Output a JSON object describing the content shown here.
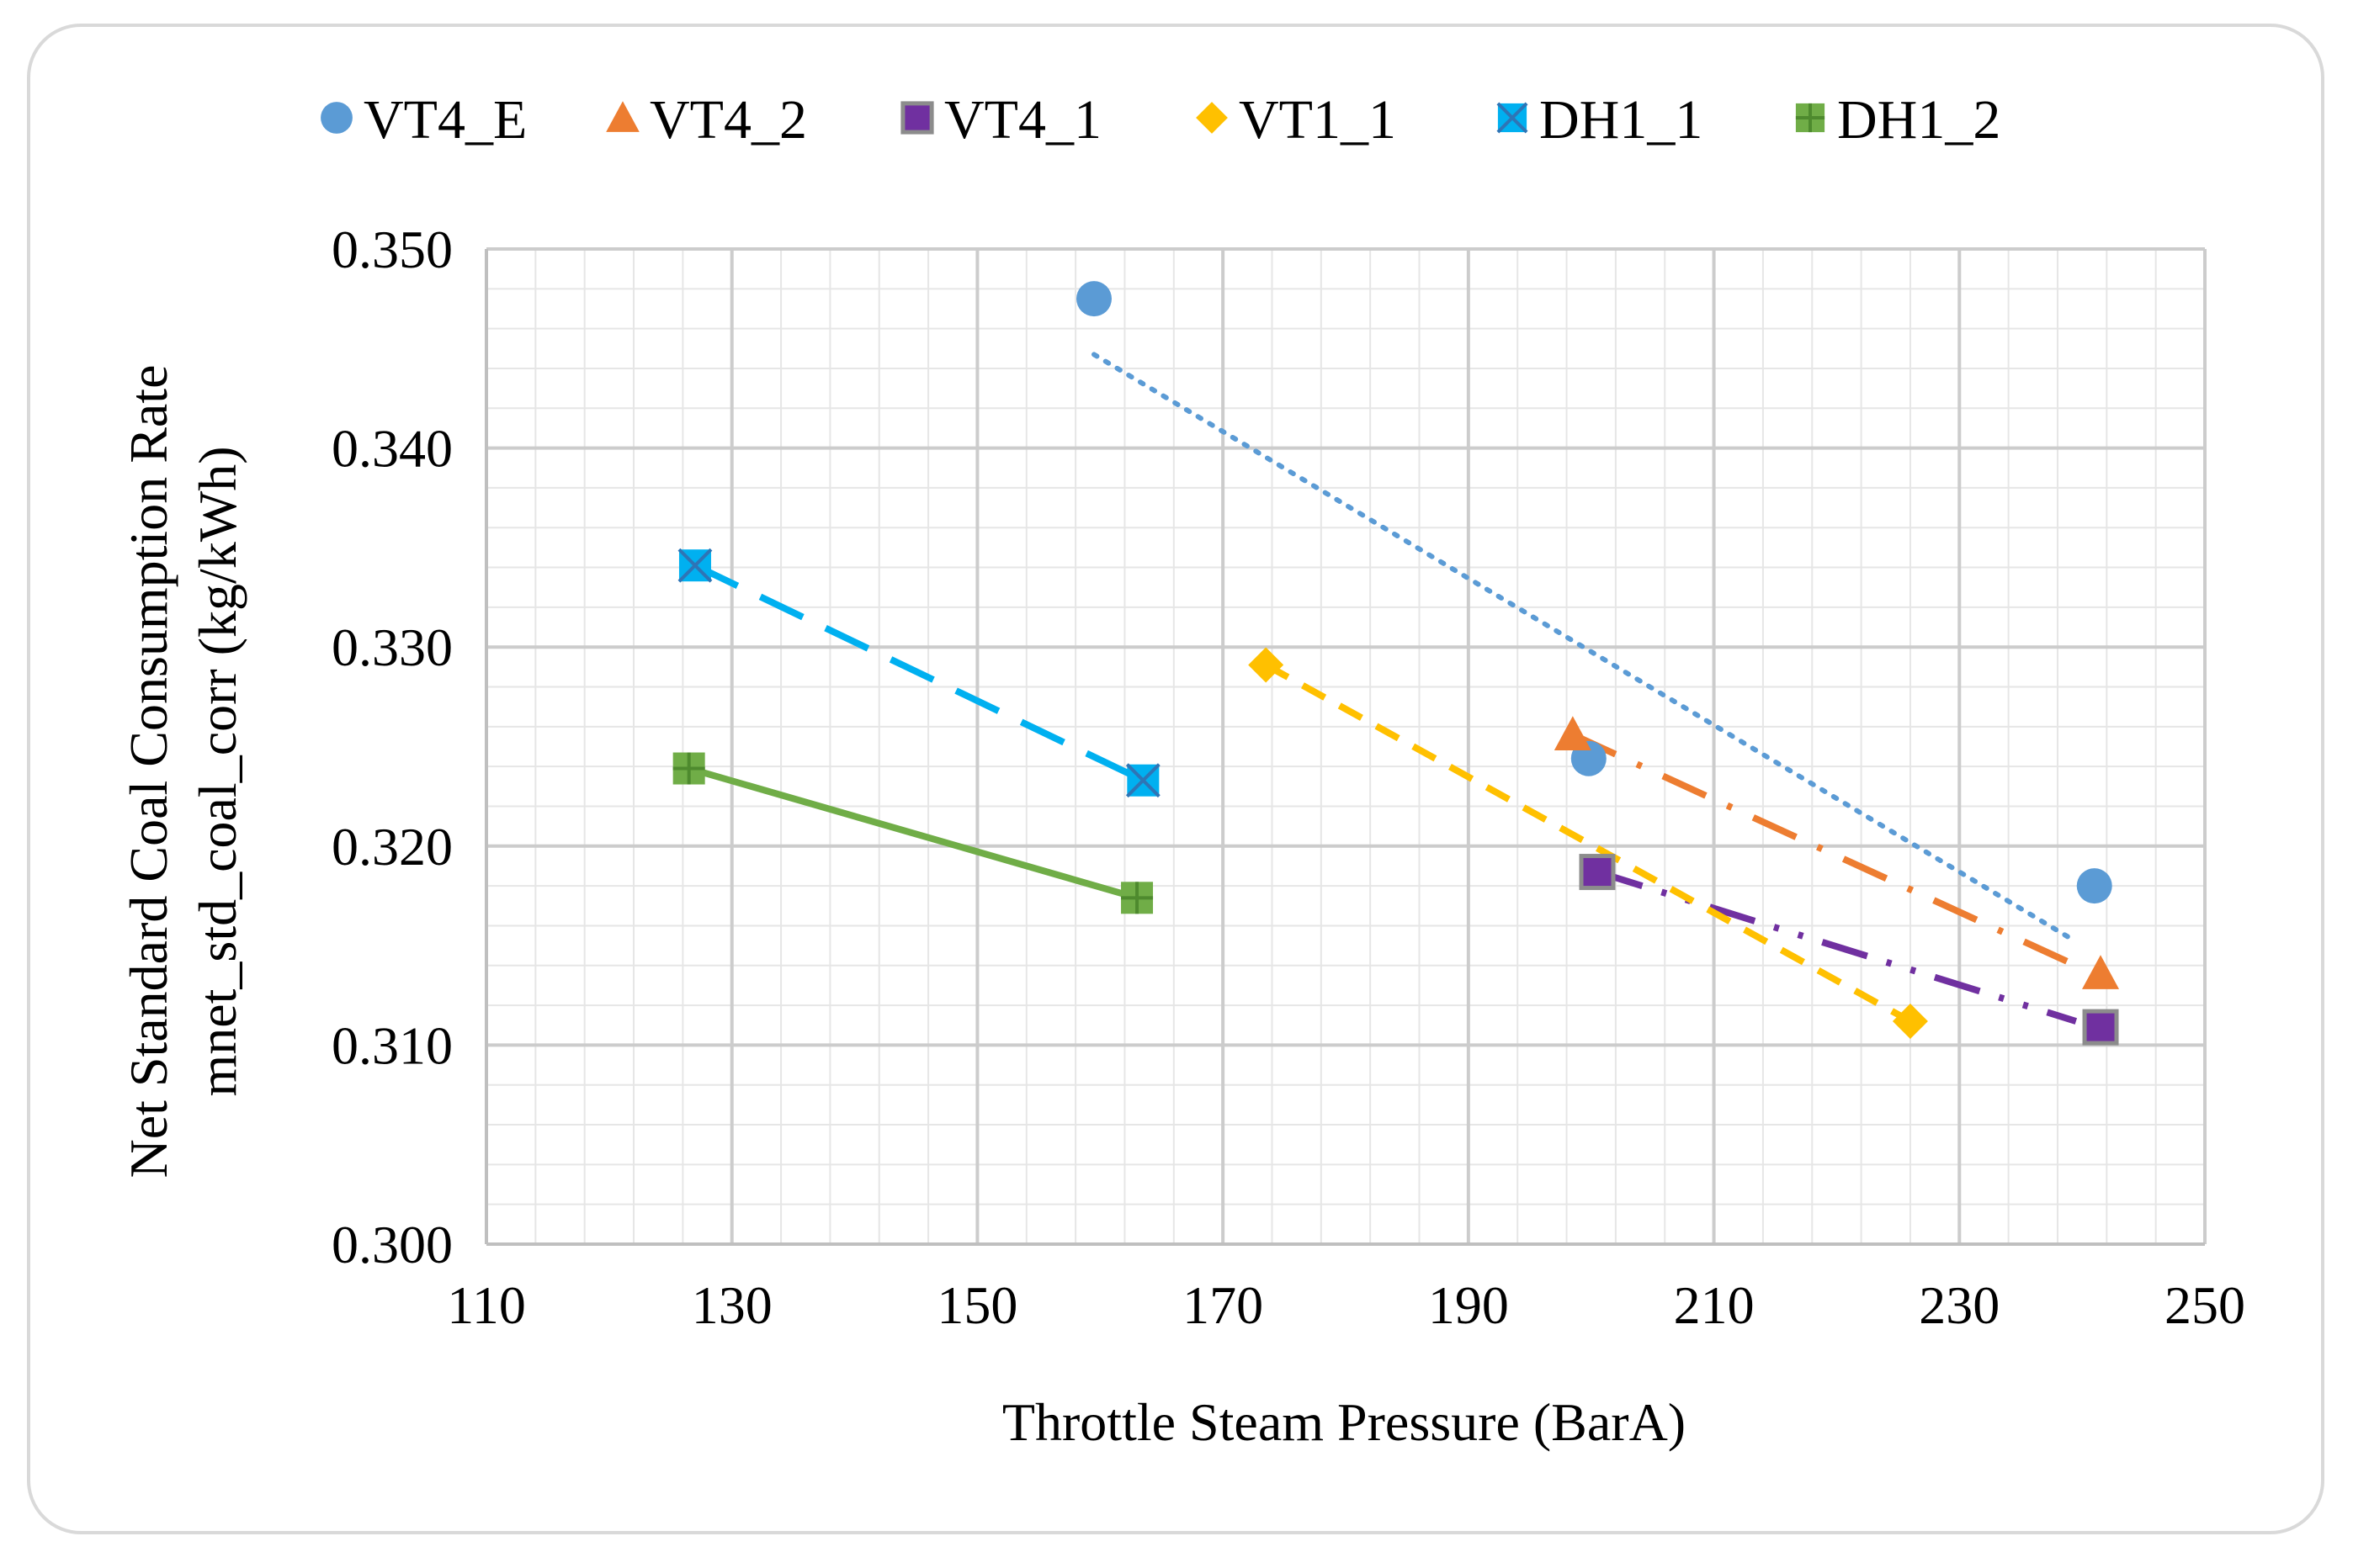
{
  "chart_data": {
    "type": "scatter",
    "xlabel": "Throttle Steam Pressure (BarA)",
    "ylabel": [
      "Net Standard Coal Consumption Rate",
      "mnet_std_coal_corr (kg/kWh)"
    ],
    "xlim": [
      110,
      250
    ],
    "ylim": [
      0.3,
      0.35
    ],
    "x_ticks": [
      110,
      130,
      150,
      170,
      190,
      210,
      230,
      250
    ],
    "x_tick_labels": [
      "110",
      "130",
      "150",
      "170",
      "190",
      "210",
      "230",
      "250"
    ],
    "y_ticks": [
      0.3,
      0.31,
      0.32,
      0.33,
      0.34,
      0.35
    ],
    "y_tick_labels": [
      "0.300",
      "0.310",
      "0.320",
      "0.330",
      "0.340",
      "0.350"
    ],
    "grid": true,
    "legend_position": "top",
    "series": [
      {
        "name": "VT4_E",
        "color": "#5b9bd5",
        "marker": "circle",
        "line": "dotted",
        "x": [
          159.5,
          199.8,
          241.0
        ],
        "y": [
          0.3475,
          0.3244,
          0.318
        ],
        "trend": {
          "x": [
            159.5,
            239.5
          ],
          "y": [
            0.3447,
            0.3152
          ]
        }
      },
      {
        "name": "VT4_2",
        "color": "#ed7d31",
        "marker": "triangle",
        "line": "long-dash-dot",
        "x": [
          198.5,
          241.5
        ],
        "y": [
          0.3256,
          0.3136
        ],
        "trend": {
          "x": [
            198.5,
            239.5
          ],
          "y": [
            0.3256,
            0.314
          ]
        }
      },
      {
        "name": "VT4_1",
        "color": "#7030a0",
        "marker": "square",
        "line": "long-dash-dot-dot",
        "x": [
          200.5,
          241.5
        ],
        "y": [
          0.3187,
          0.3109
        ],
        "trend": {
          "x": [
            200.5,
            239.5
          ],
          "y": [
            0.3187,
            0.3112
          ]
        }
      },
      {
        "name": "VT1_1",
        "color": "#ffc000",
        "marker": "diamond",
        "line": "dashed",
        "x": [
          173.5,
          226.0
        ],
        "y": [
          0.3291,
          0.3112
        ],
        "trend": {
          "x": [
            173.5,
            226.0
          ],
          "y": [
            0.3291,
            0.3112
          ]
        }
      },
      {
        "name": "DH1_1",
        "color": "#00b0f0",
        "marker": "x-square",
        "line": "long-dash",
        "x": [
          127.0,
          163.5
        ],
        "y": [
          0.3341,
          0.3233
        ],
        "trend": {
          "x": [
            127.0,
            163.5
          ],
          "y": [
            0.3341,
            0.3233
          ]
        }
      },
      {
        "name": "DH1_2",
        "color": "#70ad47",
        "marker": "plus-square",
        "line": "solid",
        "x": [
          126.5,
          163.0
        ],
        "y": [
          0.3239,
          0.3174
        ],
        "trend": {
          "x": [
            126.5,
            163.0
          ],
          "y": [
            0.3239,
            0.3174
          ]
        }
      }
    ]
  }
}
